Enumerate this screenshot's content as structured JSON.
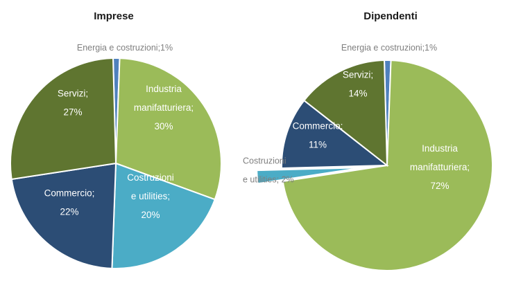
{
  "chart_data": [
    {
      "type": "pie",
      "title": "Imprese",
      "slices": [
        {
          "label": "Energia e costruzioni",
          "value": 1,
          "text": "Energia e costruzioni;1%",
          "color": "#4f81bd"
        },
        {
          "label": "Industria manifatturiera",
          "value": 30,
          "lines": [
            "Industria",
            "manifatturiera;",
            "30%"
          ],
          "color": "#9bbb59"
        },
        {
          "label": "Costruzioni e utilities",
          "value": 20,
          "lines": [
            "Costruzioni",
            "e utilities;",
            "20%"
          ],
          "color": "#4bacc6"
        },
        {
          "label": "Commercio",
          "value": 22,
          "lines": [
            "Commercio;",
            "22%"
          ],
          "color": "#2c4d75"
        },
        {
          "label": "Servizi",
          "value": 27,
          "lines": [
            "Servizi;",
            "27%"
          ],
          "color": "#5f7530"
        }
      ]
    },
    {
      "type": "pie",
      "title": "Dipendenti",
      "slices": [
        {
          "label": "Energia e costruzioni",
          "value": 1,
          "text": "Energia e costruzioni;1%",
          "color": "#4f81bd"
        },
        {
          "label": "Industria manifatturiera",
          "value": 72,
          "lines": [
            "Industria",
            "manifatturiera;",
            "72%"
          ],
          "color": "#9bbb59"
        },
        {
          "label": "Costruzioni e utilities",
          "value": 2,
          "lines": [
            "Costruzioni",
            "e utilities; 2%"
          ],
          "color": "#4bacc6"
        },
        {
          "label": "Commercio",
          "value": 11,
          "lines": [
            "Commercio;",
            "11%"
          ],
          "color": "#2c4d75"
        },
        {
          "label": "Servizi",
          "value": 14,
          "lines": [
            "Servizi;",
            "14%"
          ],
          "color": "#5f7530"
        }
      ]
    }
  ]
}
